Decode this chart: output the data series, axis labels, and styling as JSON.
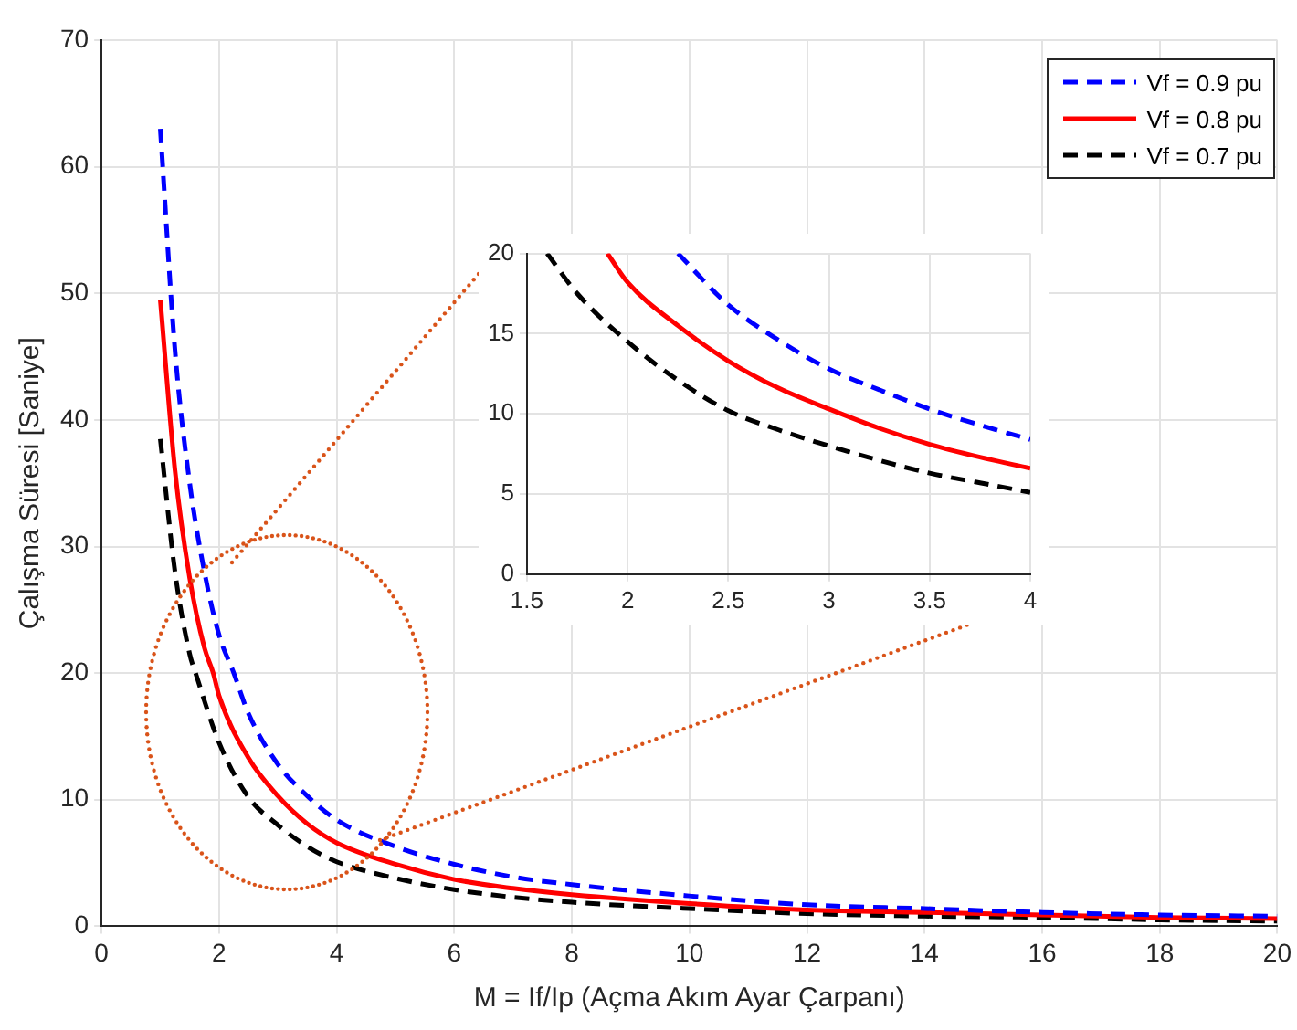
{
  "chart_data": [
    {
      "type": "line",
      "xlabel": "M = If/Ip (Açma Akım Ayar Çarpanı)",
      "ylabel": "Çalışma Süresi [Saniye]",
      "xlim": [
        0,
        20
      ],
      "ylim": [
        0,
        70
      ],
      "xticks": [
        0,
        2,
        4,
        6,
        8,
        10,
        12,
        14,
        16,
        18,
        20
      ],
      "yticks": [
        0,
        10,
        20,
        30,
        40,
        50,
        60,
        70
      ],
      "grid": true,
      "legend": "top right",
      "series": [
        {
          "name": "Vf = 0.9 pu",
          "color": "#0000ff",
          "line_style": "dashed",
          "x": [
            1,
            1.25,
            1.5,
            1.75,
            2,
            2.25,
            2.5,
            3,
            3.5,
            4,
            5,
            6,
            7,
            8,
            10,
            12,
            14,
            16,
            18,
            20
          ],
          "values": [
            63,
            45.5,
            35,
            28,
            23,
            20,
            16.8,
            12.8,
            10.3,
            8.4,
            6.3,
            4.9,
            3.9,
            3.3,
            2.4,
            1.7,
            1.4,
            1.1,
            0.9,
            0.8
          ]
        },
        {
          "name": "Vf = 0.8 pu",
          "color": "#ff0000",
          "line_style": "solid",
          "x": [
            1,
            1.25,
            1.5,
            1.75,
            1.9,
            2,
            2.5,
            3,
            3.5,
            4,
            5,
            6,
            7,
            8,
            10,
            12,
            14,
            16,
            18,
            20
          ],
          "values": [
            49.5,
            36,
            27.5,
            22,
            20,
            18.2,
            13.3,
            10.3,
            8.1,
            6.6,
            4.9,
            3.7,
            3,
            2.5,
            1.8,
            1.3,
            1.1,
            0.9,
            0.7,
            0.6
          ]
        },
        {
          "name": "Vf = 0.7 pu",
          "color": "#000000",
          "line_style": "dashed",
          "x": [
            1,
            1.25,
            1.5,
            1.6,
            2,
            2.5,
            3,
            3.5,
            4,
            5,
            6,
            7,
            8,
            10,
            12,
            14,
            16,
            18,
            20
          ],
          "values": [
            38.5,
            28,
            21.5,
            20,
            14.5,
            10.2,
            8,
            6.3,
            5.1,
            3.8,
            2.9,
            2.3,
            1.9,
            1.4,
            1,
            0.8,
            0.7,
            0.5,
            0.4
          ]
        }
      ]
    },
    {
      "type": "line",
      "xlim": [
        1.5,
        4
      ],
      "ylim": [
        0,
        20
      ],
      "xticks": [
        1.5,
        2,
        2.5,
        3,
        3.5,
        4
      ],
      "yticks": [
        0,
        5,
        10,
        15,
        20
      ],
      "grid": true,
      "series": [
        {
          "color": "#0000ff",
          "line_style": "dashed",
          "x": [
            2.25,
            2.5,
            2.75,
            3,
            3.25,
            3.5,
            3.75,
            4
          ],
          "values": [
            20,
            16.8,
            14.6,
            12.8,
            11.5,
            10.3,
            9.3,
            8.4
          ]
        },
        {
          "color": "#ff0000",
          "line_style": "solid",
          "x": [
            1.9,
            2,
            2.25,
            2.5,
            2.75,
            3,
            3.25,
            3.5,
            3.75,
            4
          ],
          "values": [
            20,
            18.2,
            15.5,
            13.3,
            11.6,
            10.3,
            9.1,
            8.1,
            7.3,
            6.6
          ]
        },
        {
          "color": "#000000",
          "line_style": "dashed",
          "x": [
            1.6,
            1.75,
            2,
            2.25,
            2.5,
            2.75,
            3,
            3.25,
            3.5,
            3.75,
            4
          ],
          "values": [
            20,
            17.5,
            14.5,
            12.1,
            10.2,
            9,
            8,
            7.1,
            6.3,
            5.7,
            5.1
          ]
        }
      ]
    }
  ]
}
